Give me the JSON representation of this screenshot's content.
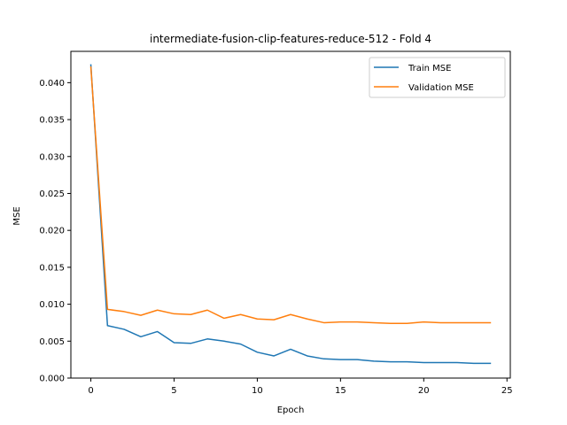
{
  "chart_data": {
    "type": "line",
    "title": "intermediate-fusion-clip-features-reduce-512 - Fold 4",
    "xlabel": "Epoch",
    "ylabel": "MSE",
    "xlim": [
      -1.2,
      25.2
    ],
    "ylim": [
      0.0,
      0.04424
    ],
    "xticks": [
      0,
      5,
      10,
      15,
      20,
      25
    ],
    "xtick_labels": [
      "0",
      "5",
      "10",
      "15",
      "20",
      "25"
    ],
    "yticks": [
      0.0,
      0.005,
      0.01,
      0.015,
      0.02,
      0.025,
      0.03,
      0.035,
      0.04
    ],
    "ytick_labels": [
      "0.000",
      "0.005",
      "0.010",
      "0.015",
      "0.020",
      "0.025",
      "0.030",
      "0.035",
      "0.040"
    ],
    "grid": false,
    "legend_position": "upper right",
    "x": [
      0,
      1,
      2,
      3,
      4,
      5,
      6,
      7,
      8,
      9,
      10,
      11,
      12,
      13,
      14,
      15,
      16,
      17,
      18,
      19,
      20,
      21,
      22,
      23,
      24
    ],
    "series": [
      {
        "name": "Train MSE",
        "color": "#1f77b4",
        "values": [
          0.0424,
          0.0071,
          0.0066,
          0.0056,
          0.0063,
          0.0048,
          0.0047,
          0.0053,
          0.005,
          0.0046,
          0.0035,
          0.003,
          0.0039,
          0.003,
          0.0026,
          0.0025,
          0.0025,
          0.0023,
          0.0022,
          0.0022,
          0.0021,
          0.0021,
          0.0021,
          0.002,
          0.002
        ]
      },
      {
        "name": "Validation MSE",
        "color": "#ff7f0e",
        "values": [
          0.0421,
          0.0093,
          0.009,
          0.0085,
          0.0092,
          0.0087,
          0.0086,
          0.0092,
          0.0081,
          0.0086,
          0.008,
          0.0079,
          0.0086,
          0.008,
          0.0075,
          0.0076,
          0.0076,
          0.0075,
          0.0074,
          0.0074,
          0.0076,
          0.0075,
          0.0075,
          0.0075,
          0.0075
        ]
      }
    ]
  }
}
